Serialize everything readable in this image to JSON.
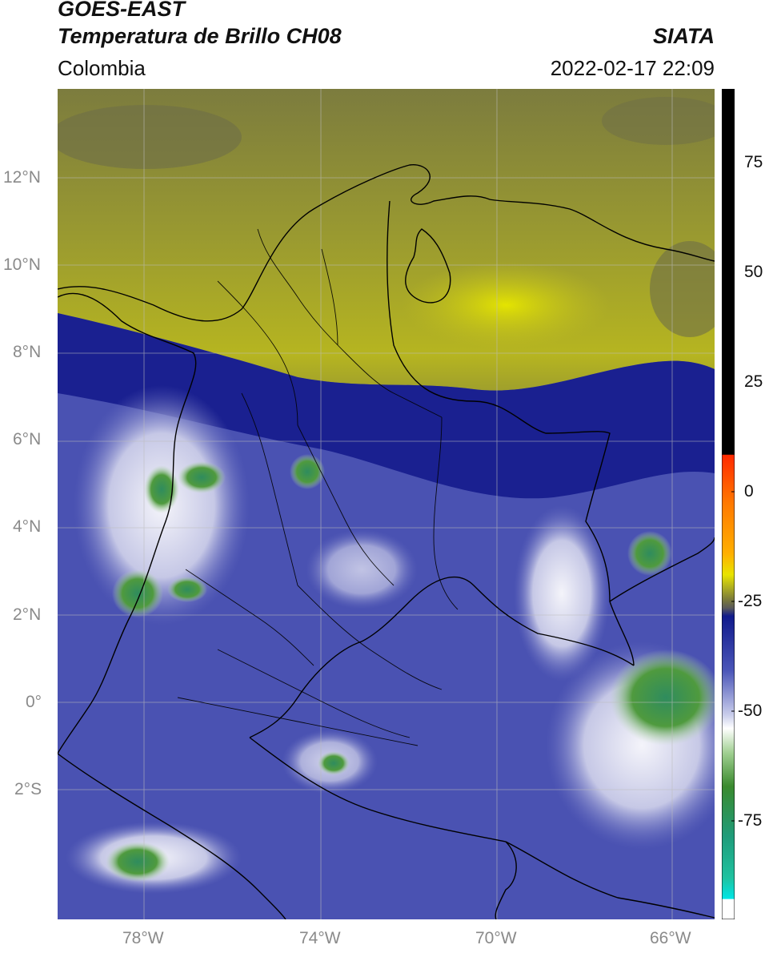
{
  "header": {
    "satellite": "GOES-EAST",
    "product": "Temperatura de Brillo CH08",
    "region": "Colombia",
    "source": "SIATA",
    "datetime": "2022-02-17 22:09"
  },
  "axes": {
    "lat_labels": [
      "12°N",
      "10°N",
      "8°N",
      "6°N",
      "4°N",
      "2°N",
      "0°",
      "2°S"
    ],
    "lon_labels": [
      "78°W",
      "74°W",
      "70°W",
      "66°W"
    ]
  },
  "colorbar": {
    "labels": [
      "75",
      "50",
      "25",
      "0",
      "-25",
      "-50",
      "-75"
    ],
    "colors": {
      "black": "#000000",
      "red": "#ff2a00",
      "orange": "#ff9a00",
      "yellow": "#e8e400",
      "olive": "#8a8a3a",
      "gray": "#5a5a5a",
      "navy": "#101a8c",
      "blue": "#4a55b8",
      "white": "#ffffff",
      "green": "#3a8a2e",
      "teal": "#1fc2a0",
      "cyan": "#00e5e5"
    }
  }
}
